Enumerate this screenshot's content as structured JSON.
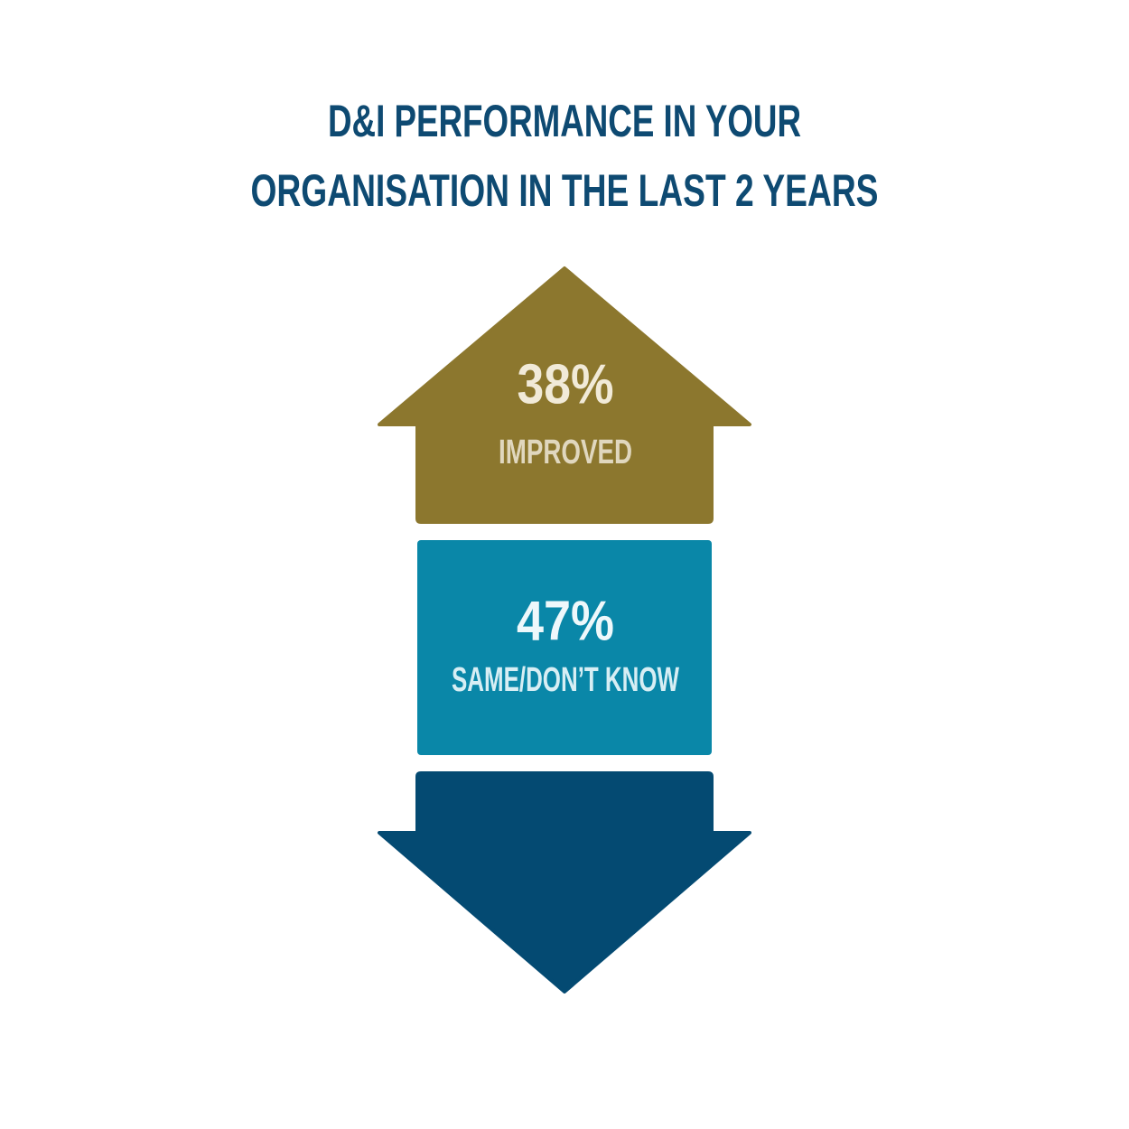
{
  "title": {
    "lines": [
      "D&I PERFORMANCE IN YOUR",
      "ORGANISATION IN THE LAST 2 YEARS"
    ]
  },
  "items": [
    {
      "value": "38%",
      "label": "IMPROVED"
    },
    {
      "value": "47%",
      "label": "SAME/DON’T KNOW"
    }
  ]
}
